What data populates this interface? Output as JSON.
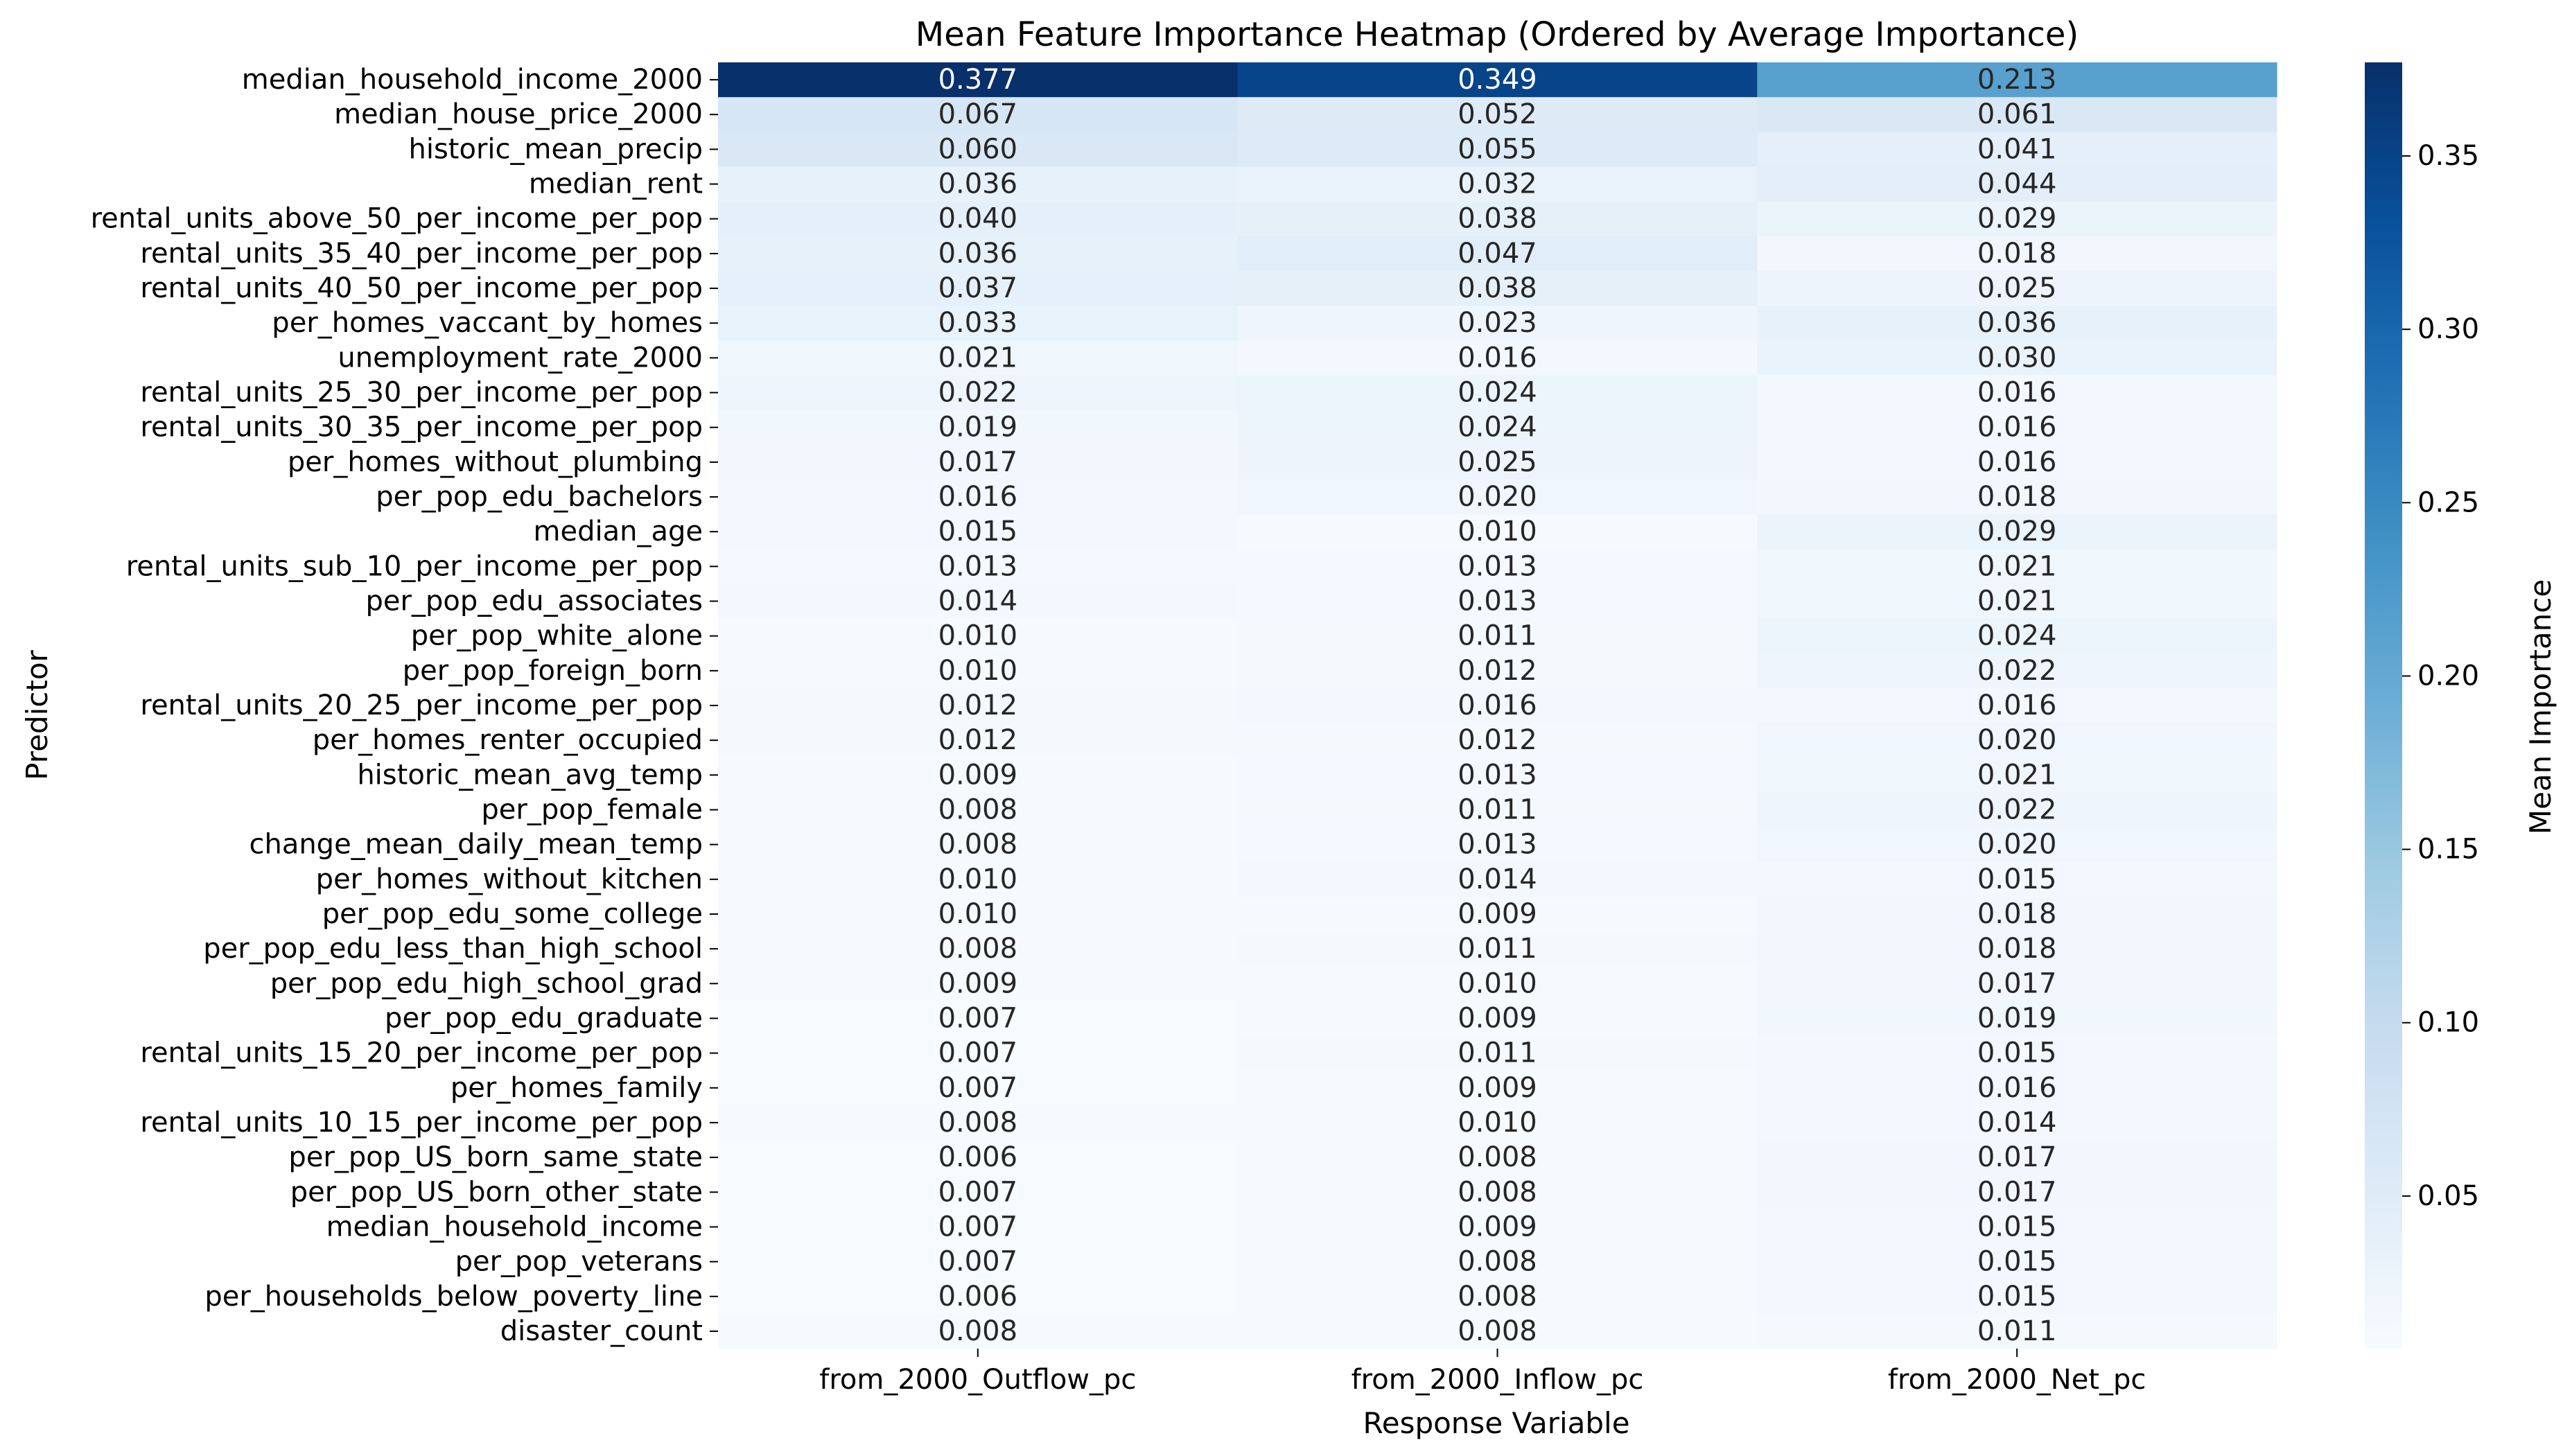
{
  "chart_data": {
    "type": "heatmap",
    "title": "Mean Feature Importance Heatmap (Ordered by Average Importance)",
    "xlabel": "Response Variable",
    "ylabel": "Predictor",
    "colorbar_label": "Mean Importance",
    "colormap": "Blues",
    "vmin": 0.006,
    "vmax": 0.377,
    "colorbar_ticks": [
      "0.05",
      "0.10",
      "0.15",
      "0.20",
      "0.25",
      "0.30",
      "0.35"
    ],
    "columns": [
      "from_2000_Outflow_pc",
      "from_2000_Inflow_pc",
      "from_2000_Net_pc"
    ],
    "rows": [
      "median_household_income_2000",
      "median_house_price_2000",
      "historic_mean_precip",
      "median_rent",
      "rental_units_above_50_per_income_per_pop",
      "rental_units_35_40_per_income_per_pop",
      "rental_units_40_50_per_income_per_pop",
      "per_homes_vaccant_by_homes",
      "unemployment_rate_2000",
      "rental_units_25_30_per_income_per_pop",
      "rental_units_30_35_per_income_per_pop",
      "per_homes_without_plumbing",
      "per_pop_edu_bachelors",
      "median_age",
      "rental_units_sub_10_per_income_per_pop",
      "per_pop_edu_associates",
      "per_pop_white_alone",
      "per_pop_foreign_born",
      "rental_units_20_25_per_income_per_pop",
      "per_homes_renter_occupied",
      "historic_mean_avg_temp",
      "per_pop_female",
      "change_mean_daily_mean_temp",
      "per_homes_without_kitchen",
      "per_pop_edu_some_college",
      "per_pop_edu_less_than_high_school",
      "per_pop_edu_high_school_grad",
      "per_pop_edu_graduate",
      "rental_units_15_20_per_income_per_pop",
      "per_homes_family",
      "rental_units_10_15_per_income_per_pop",
      "per_pop_US_born_same_state",
      "per_pop_US_born_other_state",
      "median_household_income",
      "per_pop_veterans",
      "per_households_below_poverty_line",
      "disaster_count"
    ],
    "values": [
      [
        "0.377",
        "0.349",
        "0.213"
      ],
      [
        "0.067",
        "0.052",
        "0.061"
      ],
      [
        "0.060",
        "0.055",
        "0.041"
      ],
      [
        "0.036",
        "0.032",
        "0.044"
      ],
      [
        "0.040",
        "0.038",
        "0.029"
      ],
      [
        "0.036",
        "0.047",
        "0.018"
      ],
      [
        "0.037",
        "0.038",
        "0.025"
      ],
      [
        "0.033",
        "0.023",
        "0.036"
      ],
      [
        "0.021",
        "0.016",
        "0.030"
      ],
      [
        "0.022",
        "0.024",
        "0.016"
      ],
      [
        "0.019",
        "0.024",
        "0.016"
      ],
      [
        "0.017",
        "0.025",
        "0.016"
      ],
      [
        "0.016",
        "0.020",
        "0.018"
      ],
      [
        "0.015",
        "0.010",
        "0.029"
      ],
      [
        "0.013",
        "0.013",
        "0.021"
      ],
      [
        "0.014",
        "0.013",
        "0.021"
      ],
      [
        "0.010",
        "0.011",
        "0.024"
      ],
      [
        "0.010",
        "0.012",
        "0.022"
      ],
      [
        "0.012",
        "0.016",
        "0.016"
      ],
      [
        "0.012",
        "0.012",
        "0.020"
      ],
      [
        "0.009",
        "0.013",
        "0.021"
      ],
      [
        "0.008",
        "0.011",
        "0.022"
      ],
      [
        "0.008",
        "0.013",
        "0.020"
      ],
      [
        "0.010",
        "0.014",
        "0.015"
      ],
      [
        "0.010",
        "0.009",
        "0.018"
      ],
      [
        "0.008",
        "0.011",
        "0.018"
      ],
      [
        "0.009",
        "0.010",
        "0.017"
      ],
      [
        "0.007",
        "0.009",
        "0.019"
      ],
      [
        "0.007",
        "0.011",
        "0.015"
      ],
      [
        "0.007",
        "0.009",
        "0.016"
      ],
      [
        "0.008",
        "0.010",
        "0.014"
      ],
      [
        "0.006",
        "0.008",
        "0.017"
      ],
      [
        "0.007",
        "0.008",
        "0.017"
      ],
      [
        "0.007",
        "0.009",
        "0.015"
      ],
      [
        "0.007",
        "0.008",
        "0.015"
      ],
      [
        "0.006",
        "0.008",
        "0.015"
      ],
      [
        "0.008",
        "0.008",
        "0.011"
      ]
    ]
  }
}
